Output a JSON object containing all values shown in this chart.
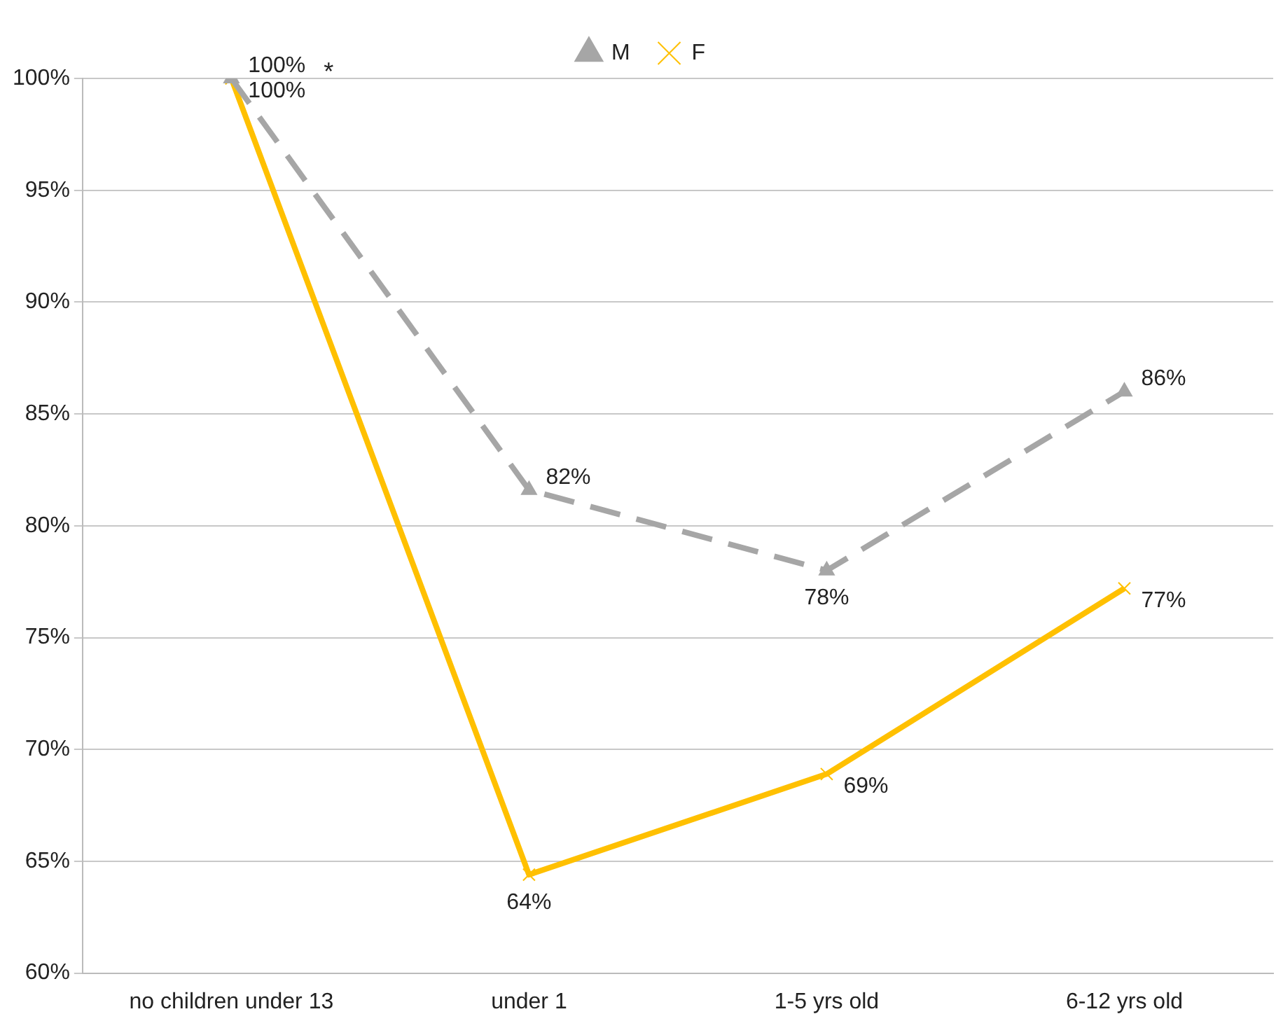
{
  "chart_data": {
    "type": "line",
    "categories": [
      "no children under 13",
      "under 1",
      "1-5 yrs old",
      "6-12 yrs old"
    ],
    "series": [
      {
        "name": "M",
        "color": "#a6a6a6",
        "values": [
          100,
          81.6,
          78,
          86
        ],
        "value_labels": [
          "100%",
          "82%",
          "78%",
          "86%"
        ],
        "marker": "triangle",
        "line_style": "dashed"
      },
      {
        "name": "F",
        "color": "#ffc000",
        "values": [
          100,
          64.4,
          68.9,
          77.2
        ],
        "value_labels": [
          "100%",
          "64%",
          "69%",
          "77%"
        ],
        "marker": "cross",
        "line_style": "solid"
      }
    ],
    "ylim": [
      60,
      100
    ],
    "yticks": [
      {
        "value": 60,
        "label": "60%"
      },
      {
        "value": 65,
        "label": "65%"
      },
      {
        "value": 70,
        "label": "70%"
      },
      {
        "value": 75,
        "label": "75%"
      },
      {
        "value": 80,
        "label": "80%"
      },
      {
        "value": 85,
        "label": "85%"
      },
      {
        "value": 90,
        "label": "90%"
      },
      {
        "value": 95,
        "label": "95%"
      },
      {
        "value": 100,
        "label": "100%"
      }
    ],
    "grid": "y",
    "legend": "top",
    "annotations": [
      "*"
    ]
  }
}
